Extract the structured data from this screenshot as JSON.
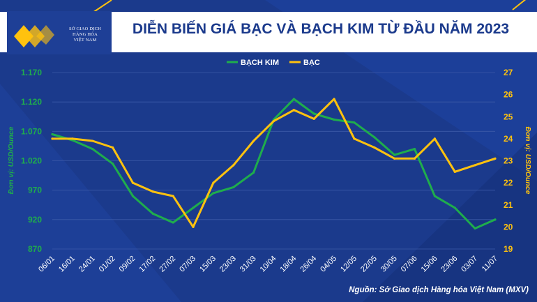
{
  "header": {
    "title": "DIỄN BIẾN GIÁ BẠC VÀ BẠCH KIM TỪ ĐẦU NĂM 2023",
    "logo_lines": [
      "SỞ GIAO DỊCH",
      "HÀNG HÓA",
      "VIỆT NAM"
    ]
  },
  "footer": {
    "source": "Nguồn: Sở Giao dịch Hàng hóa Việt Nam (MXV)"
  },
  "colors": {
    "background": "#1b3a8c",
    "platinum": "#1fad4c",
    "silver": "#ffc20e",
    "grid": "#3d5aa8"
  },
  "chart_data": {
    "type": "line",
    "x": [
      "06/01",
      "16/01",
      "24/01",
      "01/02",
      "09/02",
      "17/02",
      "27/02",
      "07/03",
      "15/03",
      "23/03",
      "31/03",
      "10/04",
      "18/04",
      "26/04",
      "04/05",
      "12/05",
      "22/05",
      "30/05",
      "07/06",
      "15/06",
      "23/06",
      "03/07",
      "11/07"
    ],
    "series": [
      {
        "name": "BẠCH KIM",
        "axis": "left",
        "values": [
          1065,
          1055,
          1040,
          1015,
          960,
          930,
          915,
          940,
          965,
          975,
          1000,
          1090,
          1125,
          1100,
          1090,
          1085,
          1060,
          1030,
          1040,
          960,
          940,
          905,
          920
        ]
      },
      {
        "name": "BẠC",
        "axis": "right",
        "values": [
          24.0,
          24.0,
          23.9,
          23.6,
          22.0,
          21.6,
          21.4,
          20.0,
          22.0,
          22.8,
          23.9,
          24.8,
          25.3,
          24.9,
          25.8,
          24.0,
          23.6,
          23.1,
          23.1,
          24.0,
          22.5,
          22.8,
          23.1
        ]
      }
    ],
    "y_left": {
      "label": "Đơn vị: USD/Ounce",
      "ticks": [
        870,
        920,
        970,
        1020,
        1070,
        1120,
        1170
      ],
      "tick_labels": [
        "870",
        "920",
        "970",
        "1.020",
        "1.070",
        "1.120",
        "1.170"
      ],
      "range": [
        870,
        1170
      ]
    },
    "y_right": {
      "label": "Đơn vị: USD/Ounce",
      "ticks": [
        19,
        20,
        21,
        22,
        23,
        24,
        25,
        26,
        27
      ],
      "range": [
        19,
        27
      ]
    },
    "legend": "top-center",
    "grid": true
  }
}
